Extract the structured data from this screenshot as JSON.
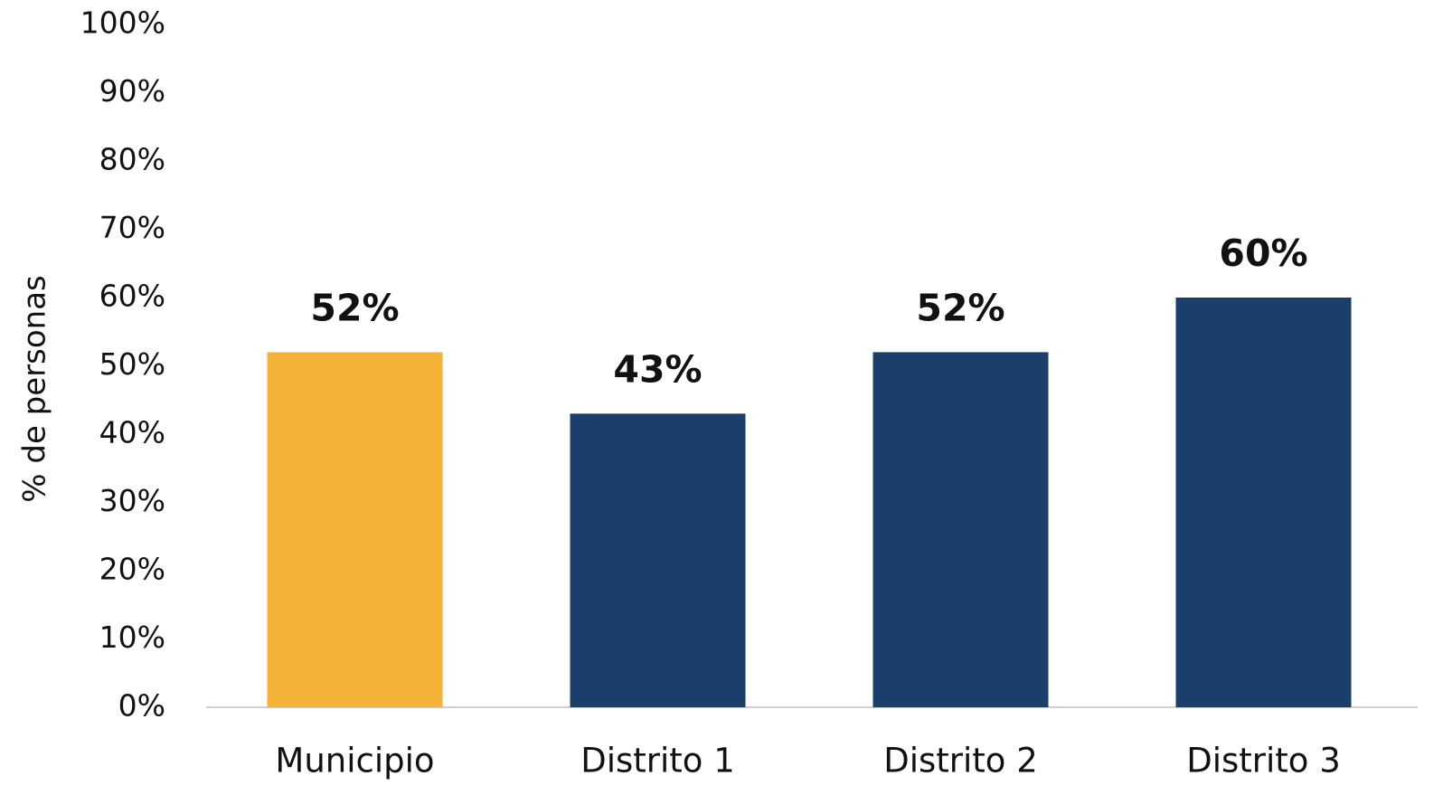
{
  "chart_data": {
    "type": "bar",
    "ylabel": "% de personas",
    "categories": [
      "Municipio",
      "Distrito 1",
      "Distrito 2",
      "Distrito 3"
    ],
    "values": [
      52,
      43,
      52,
      60
    ],
    "value_labels": [
      "52%",
      "43%",
      "52%",
      "60%"
    ],
    "colors": [
      "#f4b336",
      "#1b3f6b",
      "#1b3f6b",
      "#1b3f6b"
    ],
    "ylim": [
      0,
      100
    ],
    "yticks": [
      {
        "value": 0,
        "label": "0%"
      },
      {
        "value": 10,
        "label": "10%"
      },
      {
        "value": 20,
        "label": "20%"
      },
      {
        "value": 30,
        "label": "30%"
      },
      {
        "value": 40,
        "label": "40%"
      },
      {
        "value": 50,
        "label": "50%"
      },
      {
        "value": 60,
        "label": "60%"
      },
      {
        "value": 70,
        "label": "70%"
      },
      {
        "value": 80,
        "label": "80%"
      },
      {
        "value": 90,
        "label": "90%"
      },
      {
        "value": 100,
        "label": "100%"
      }
    ],
    "grid": false
  }
}
